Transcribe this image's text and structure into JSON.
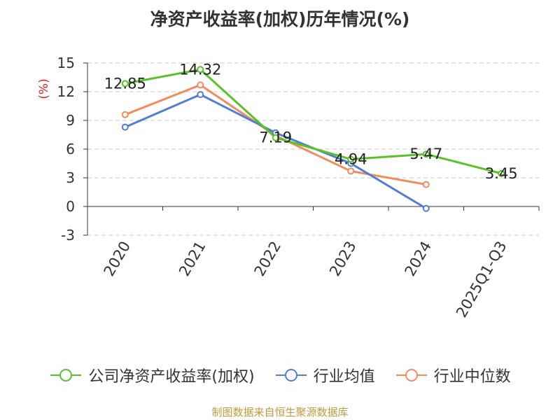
{
  "chart_data": {
    "type": "line",
    "title": "净资产收益率(加权)历年情况(%)",
    "ylabel": "(%)",
    "xlabel": "",
    "categories": [
      "2020",
      "2021",
      "2022",
      "2023",
      "2024",
      "2025Q1-Q3"
    ],
    "ylim": [
      -3,
      15
    ],
    "yticks": [
      15,
      12,
      9,
      6,
      3,
      0,
      -3
    ],
    "series": [
      {
        "name": "公司净资产收益率(加权)",
        "color": "#5ac229",
        "values": [
          12.85,
          14.32,
          7.19,
          4.94,
          5.47,
          3.45
        ],
        "labels": [
          "12.85",
          "14.32",
          "7.19",
          "4.94",
          "5.47",
          "3.45"
        ]
      },
      {
        "name": "行业均值",
        "color": "#4e7fd4",
        "values": [
          8.3,
          11.7,
          7.7,
          4.5,
          -0.2,
          null
        ]
      },
      {
        "name": "行业中位数",
        "color": "#f28c5c",
        "values": [
          9.6,
          12.7,
          7.4,
          3.7,
          2.3,
          null
        ]
      }
    ]
  },
  "footer": {
    "source": "制图数据来自恒生聚源数据库"
  }
}
